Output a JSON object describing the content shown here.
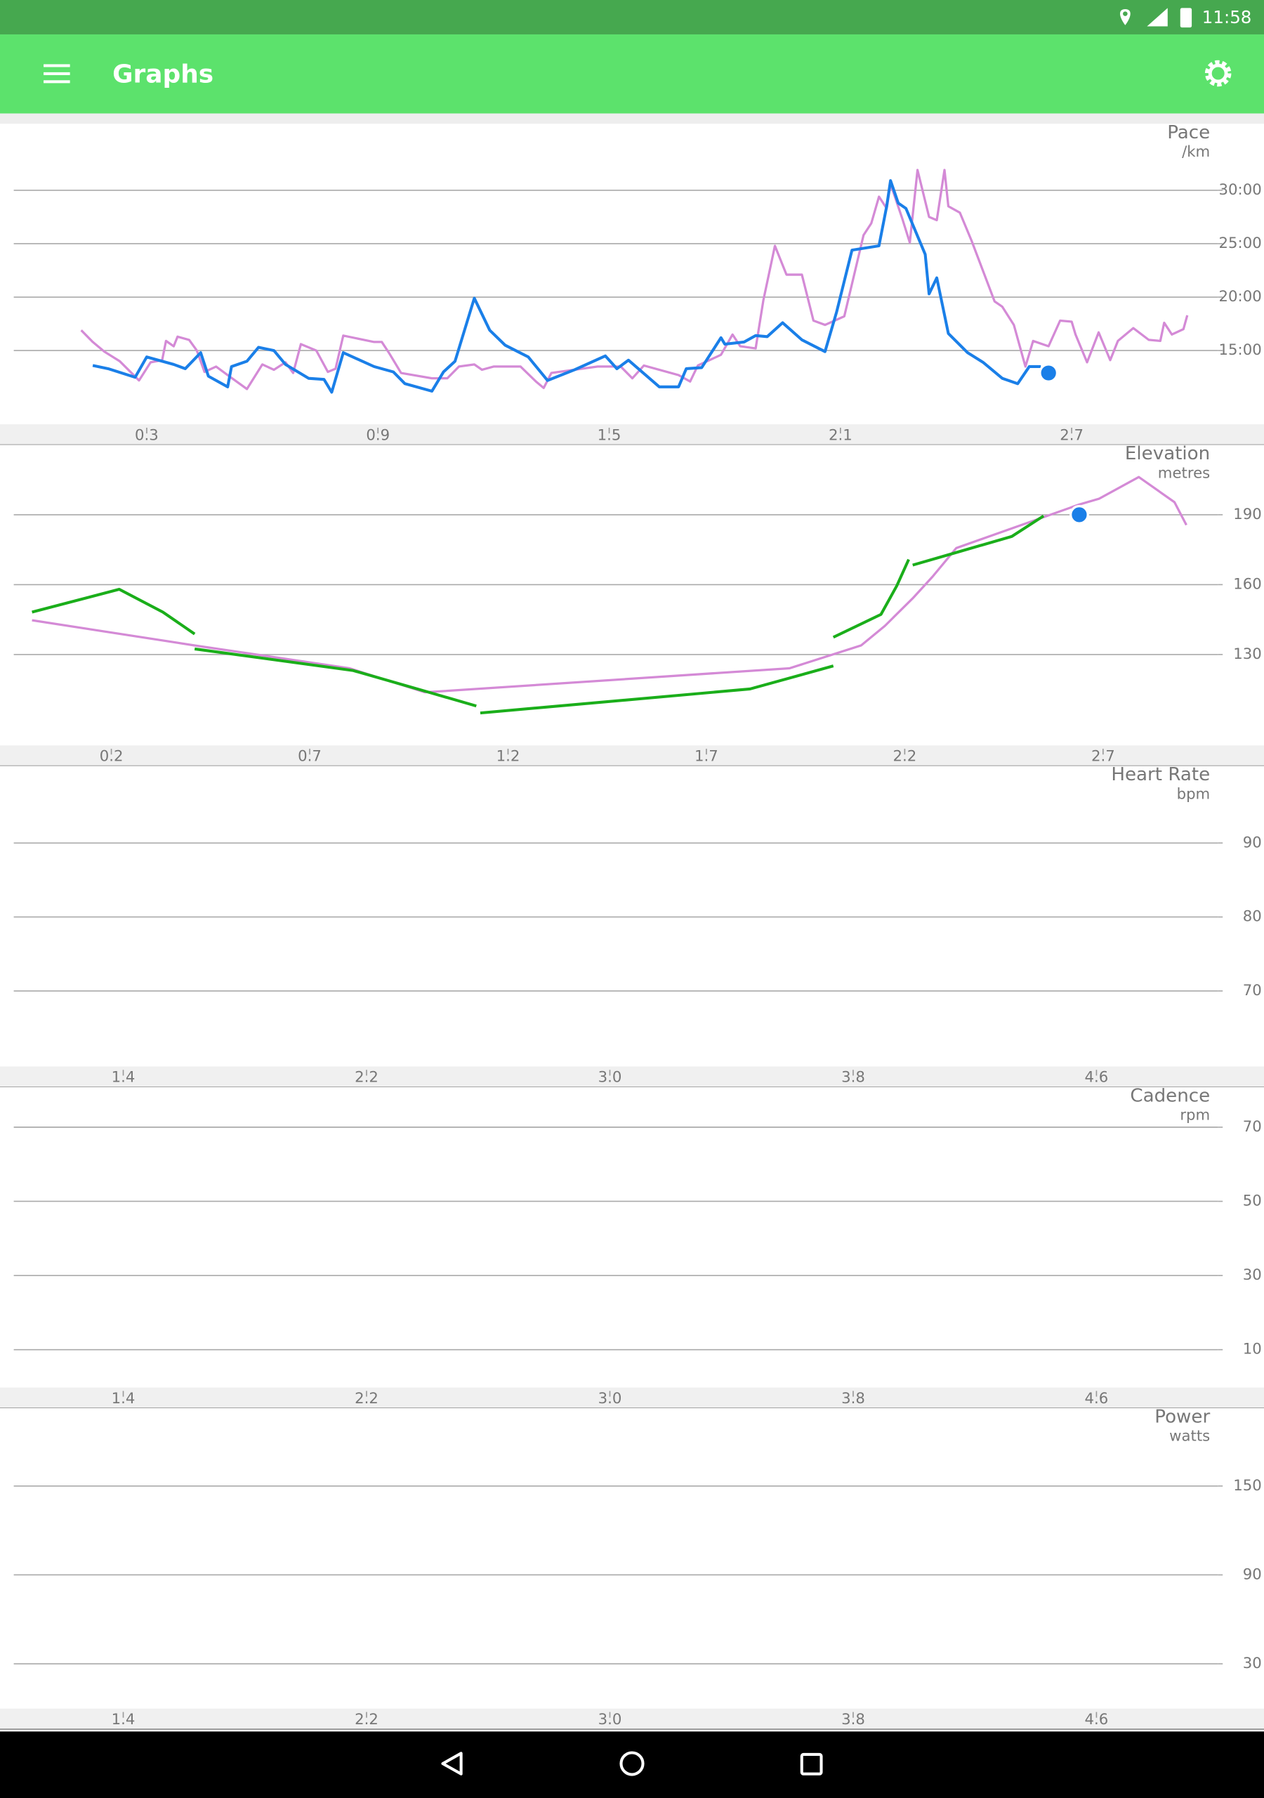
{
  "status_bar": {
    "time": "11:58"
  },
  "app_bar": {
    "title": "Graphs"
  },
  "chart_data": [
    {
      "type": "line",
      "title": "Pace",
      "y_label": "/km",
      "xlim": [
        -0.045,
        3.08
      ],
      "xticks": [
        0.3,
        0.9,
        1.5,
        2.1,
        2.7
      ],
      "ylim": [
        8.1,
        36
      ],
      "yticks": [
        {
          "value": 15,
          "label": "15:00"
        },
        {
          "value": 20,
          "label": "20:00"
        },
        {
          "value": 25,
          "label": "25:00"
        },
        {
          "value": 30,
          "label": "30:00"
        }
      ],
      "grid": true,
      "series": [
        {
          "color": "#d48ad6",
          "x": [
            0.13,
            0.16,
            0.19,
            0.23,
            0.28,
            0.31,
            0.34,
            0.35,
            0.37,
            0.38,
            0.41,
            0.43,
            0.45,
            0.48,
            0.51,
            0.56,
            0.6,
            0.63,
            0.66,
            0.68,
            0.7,
            0.74,
            0.77,
            0.79,
            0.81,
            0.89,
            0.91,
            0.93,
            0.96,
            1.04,
            1.08,
            1.11,
            1.15,
            1.17,
            1.2,
            1.27,
            1.31,
            1.33,
            1.35,
            1.47,
            1.53,
            1.56,
            1.59,
            1.68,
            1.71,
            1.73,
            1.79,
            1.82,
            1.84,
            1.88,
            1.9,
            1.93,
            1.96,
            2.0,
            2.03,
            2.06,
            2.11,
            2.16,
            2.18,
            2.2,
            2.22,
            2.23,
            2.26,
            2.28,
            2.3,
            2.33,
            2.35,
            2.37,
            2.38,
            2.41,
            2.44,
            2.5,
            2.52,
            2.55,
            2.58,
            2.6,
            2.64,
            2.67,
            2.7,
            2.71,
            2.74,
            2.77,
            2.8,
            2.82,
            2.86,
            2.9,
            2.93,
            2.94,
            2.96,
            2.99,
            3.0
          ],
          "values": [
            16.9,
            15.8,
            14.9,
            14.0,
            12.2,
            13.9,
            14.1,
            15.9,
            15.4,
            16.3,
            16.0,
            15.0,
            13.0,
            13.5,
            12.7,
            11.4,
            13.7,
            13.2,
            13.9,
            12.9,
            15.6,
            15.0,
            13.0,
            13.3,
            16.4,
            15.8,
            15.8,
            14.7,
            12.9,
            12.4,
            12.4,
            13.5,
            13.7,
            13.2,
            13.5,
            13.5,
            12.1,
            11.5,
            12.9,
            13.5,
            13.5,
            12.4,
            13.6,
            12.7,
            12.1,
            13.6,
            14.6,
            16.5,
            15.4,
            15.2,
            19.7,
            24.8,
            22.1,
            22.1,
            17.8,
            17.4,
            18.2,
            25.8,
            26.9,
            29.4,
            28.3,
            30.6,
            27.4,
            25.1,
            31.9,
            27.5,
            27.2,
            31.9,
            28.5,
            27.9,
            25.3,
            19.6,
            19.1,
            17.4,
            13.5,
            15.9,
            15.4,
            17.8,
            17.7,
            16.5,
            13.9,
            16.7,
            14.1,
            15.9,
            17.1,
            16.0,
            15.9,
            17.6,
            16.5,
            17.0,
            18.3
          ]
        },
        {
          "color": "#1a7fe8",
          "x": [
            0.16,
            0.2,
            0.27,
            0.3,
            0.37,
            0.4,
            0.44,
            0.46,
            0.51,
            0.52,
            0.56,
            0.59,
            0.63,
            0.66,
            0.72,
            0.76,
            0.78,
            0.81,
            0.89,
            0.94,
            0.97,
            1.04,
            1.07,
            1.1,
            1.15,
            1.19,
            1.23,
            1.29,
            1.34,
            1.41,
            1.49,
            1.52,
            1.55,
            1.63,
            1.68,
            1.7,
            1.74,
            1.79,
            1.8,
            1.85,
            1.88,
            1.91,
            1.95,
            2.0,
            2.06,
            2.09,
            2.13,
            2.2,
            2.22,
            2.23,
            2.25,
            2.27,
            2.32,
            2.33,
            2.35,
            2.38,
            2.43,
            2.47,
            2.52,
            2.56,
            2.59,
            2.62
          ],
          "values": [
            13.6,
            13.3,
            12.5,
            14.4,
            13.7,
            13.3,
            14.8,
            12.6,
            11.6,
            13.5,
            14.0,
            15.3,
            15.0,
            13.7,
            12.4,
            12.3,
            11.1,
            14.8,
            13.5,
            13.0,
            11.9,
            11.2,
            13.0,
            14.0,
            19.9,
            16.9,
            15.5,
            14.4,
            12.2,
            13.2,
            14.5,
            13.3,
            14.1,
            11.6,
            11.6,
            13.3,
            13.4,
            16.2,
            15.6,
            15.8,
            16.4,
            16.3,
            17.6,
            16.0,
            14.9,
            18.6,
            24.4,
            24.8,
            28.5,
            30.9,
            28.8,
            28.3,
            24.0,
            20.3,
            21.8,
            16.6,
            14.8,
            13.9,
            12.4,
            11.9,
            13.5,
            13.5
          ]
        }
      ],
      "marker": {
        "x": 2.64,
        "value": 12.9,
        "color": "#1a7fe8"
      }
    },
    {
      "type": "line",
      "title": "Elevation",
      "y_label": "metres",
      "xlim": [
        -0.046,
        2.99
      ],
      "xticks": [
        0.2,
        0.7,
        1.2,
        1.7,
        2.2,
        2.7
      ],
      "ylim": [
        91,
        219
      ],
      "yticks": [
        130,
        160,
        190
      ],
      "grid": true,
      "series": [
        {
          "color": "#d48ad6",
          "x": [
            0.0,
            0.41,
            0.8,
            0.99,
            1.03,
            1.91,
            2.09,
            2.15,
            2.22,
            2.27,
            2.33,
            2.64,
            2.69,
            2.79,
            2.88,
            2.91
          ],
          "values": [
            144.7,
            133.9,
            124.1,
            113.8,
            114.2,
            124.1,
            133.9,
            142.3,
            154.1,
            163.4,
            175.7,
            194.4,
            196.9,
            206.2,
            195.4,
            185.6
          ]
        },
        {
          "color": "#1aae1a",
          "x": [
            0.0,
            0.22,
            0.33,
            0.41,
            null,
            0.41,
            0.81,
            0.99,
            1.12,
            null,
            1.13,
            1.81,
            2.02,
            null,
            2.02,
            2.14,
            2.18,
            2.21,
            null,
            2.22,
            2.34,
            2.47,
            2.55
          ],
          "values": [
            148.2,
            158.0,
            148.2,
            138.8,
            null,
            132.4,
            123.1,
            114.3,
            107.9,
            null,
            104.9,
            115.2,
            125.1,
            null,
            137.4,
            147.2,
            159.5,
            170.8,
            null,
            168.4,
            174.3,
            180.7,
            189.5
          ]
        }
      ],
      "marker": {
        "x": 2.64,
        "value": 190,
        "color": "#1a7fe8"
      }
    },
    {
      "type": "line",
      "title": "Heart Rate",
      "y_label": "bpm",
      "xlim": [
        1.04,
        5.0
      ],
      "xticks": [
        1.4,
        2.2,
        {
          "value": 3,
          "label": "3.0"
        },
        3.8,
        4.6
      ],
      "ylim": [
        59.8,
        100.1
      ],
      "yticks": [
        70,
        80,
        90
      ],
      "grid": true
    },
    {
      "type": "line",
      "title": "Cadence",
      "y_label": "rpm",
      "xlim": [
        1.04,
        5.0
      ],
      "xticks": [
        1.4,
        2.2,
        {
          "value": 3,
          "label": "3.0"
        },
        3.8,
        4.6
      ],
      "ylim": [
        -0.2,
        80.2
      ],
      "yticks": [
        10,
        30,
        50,
        70
      ],
      "grid": true
    },
    {
      "type": "line",
      "title": "Power",
      "y_label": "watts",
      "xlim": [
        1.04,
        5.0
      ],
      "xticks": [
        1.4,
        2.2,
        {
          "value": 3,
          "label": "3.0"
        },
        3.8,
        4.6
      ],
      "ylim": [
        -0.2,
        201
      ],
      "yticks": [
        30,
        90,
        150
      ],
      "grid": true
    }
  ]
}
